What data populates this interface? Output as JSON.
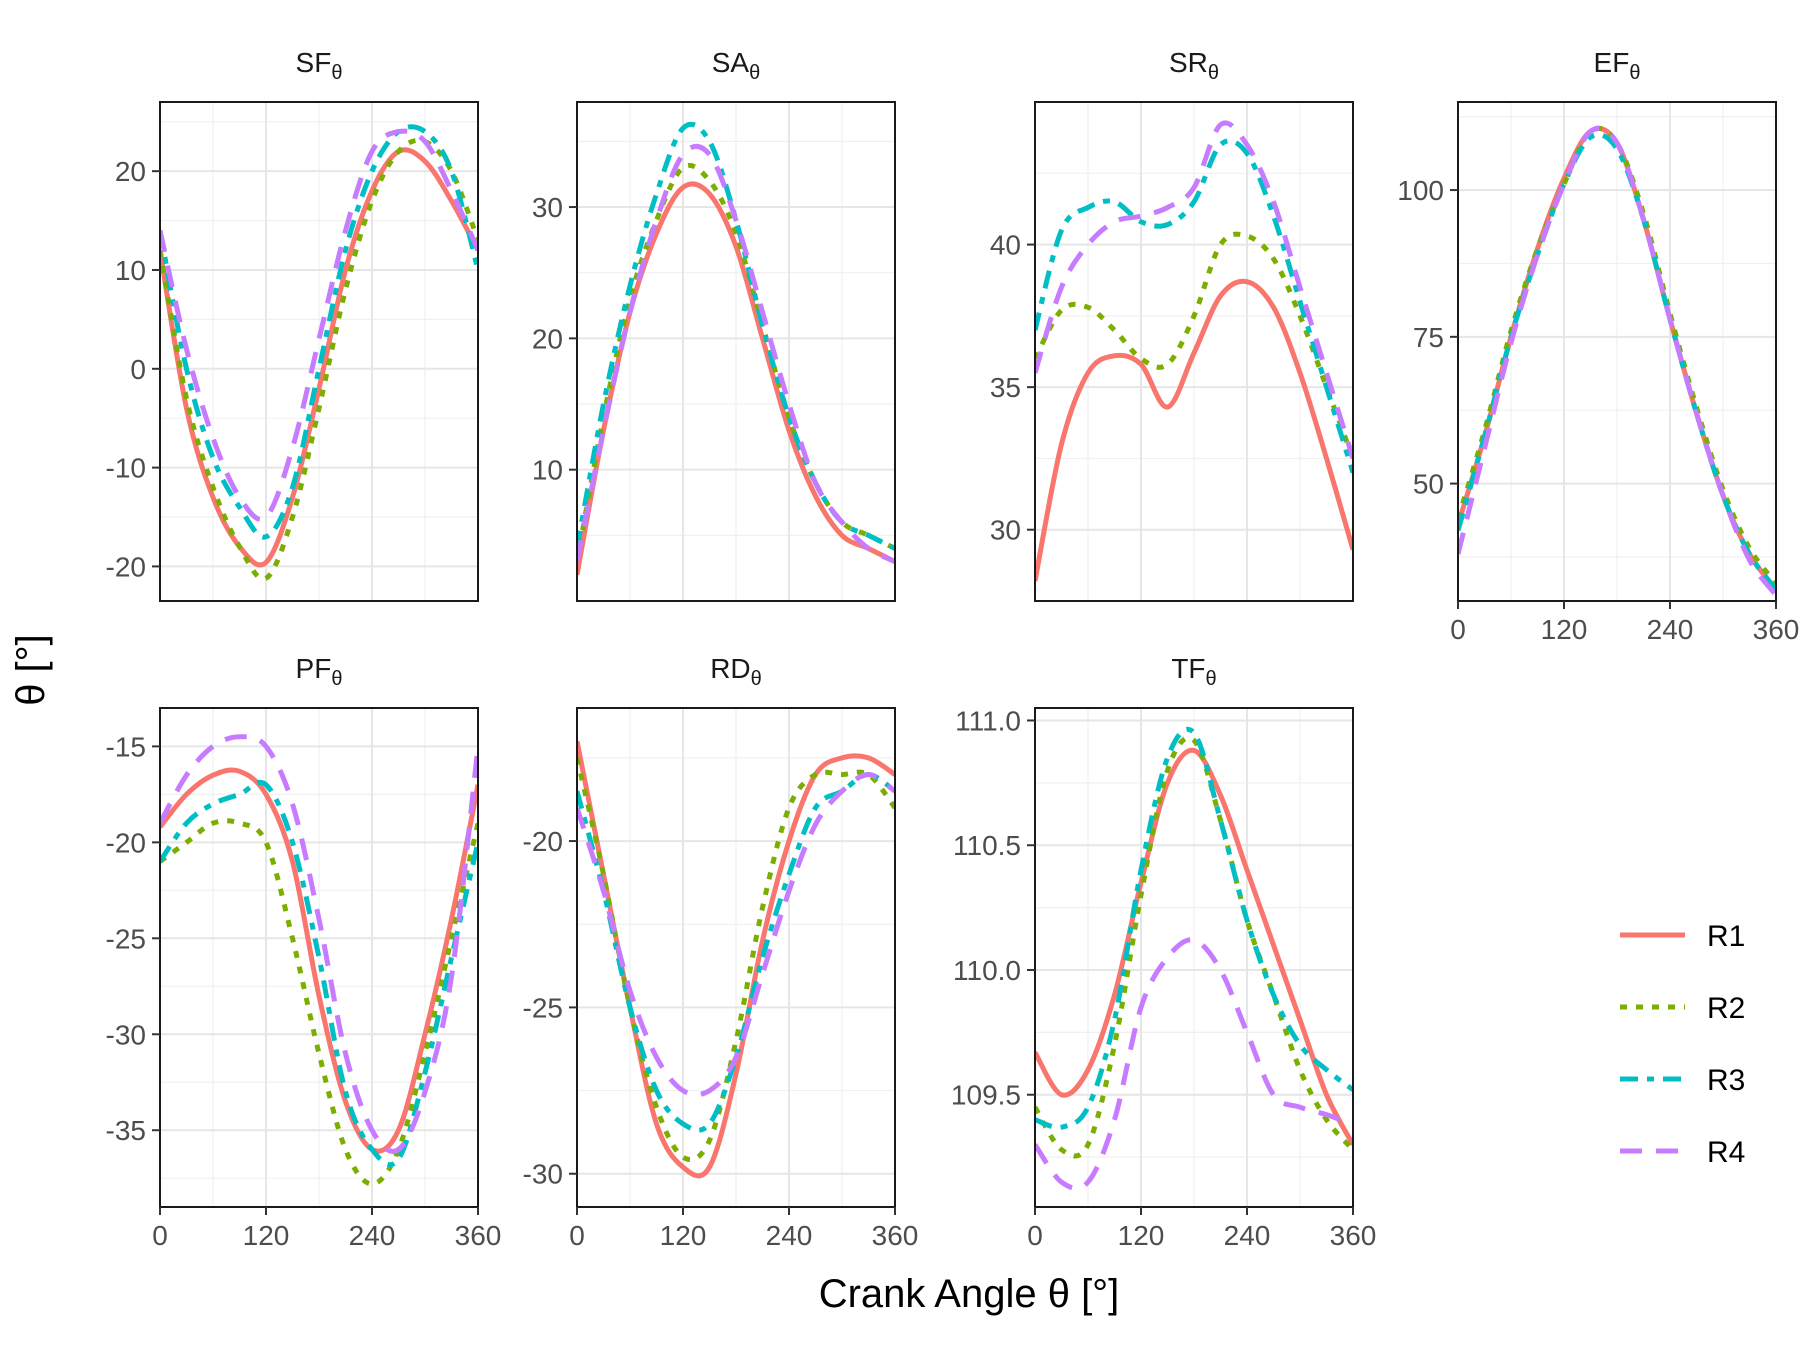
{
  "figure": {
    "ylabel": "θ [°]",
    "xlabel": "Crank Angle θ [°]"
  },
  "legend": {
    "entries": [
      {
        "name": "R1",
        "color": "#F8766D",
        "dash": "solid"
      },
      {
        "name": "R2",
        "color": "#7CAE00",
        "dash": "dotted"
      },
      {
        "name": "R3",
        "color": "#00BFC4",
        "dash": "dotdash"
      },
      {
        "name": "R4",
        "color": "#C77CFF",
        "dash": "dashed"
      }
    ]
  },
  "chart_data": [
    {
      "type": "line",
      "title": "SF",
      "title_sub": "θ",
      "x": [
        0,
        30,
        60,
        90,
        120,
        150,
        180,
        210,
        240,
        270,
        300,
        330,
        360
      ],
      "xlim": [
        0,
        360
      ],
      "ylim": [
        -23.5,
        27
      ],
      "xticks": [
        0,
        120,
        240,
        360
      ],
      "yticks": [
        -20,
        -10,
        0,
        10,
        20
      ],
      "series": [
        {
          "name": "R1",
          "values": [
            12,
            -4,
            -13,
            -18,
            -19.6,
            -13,
            -2,
            10,
            18,
            22,
            21,
            17,
            12
          ]
        },
        {
          "name": "R2",
          "values": [
            12,
            -3,
            -12,
            -18,
            -21.2,
            -15,
            -4,
            8,
            17,
            22,
            23,
            20,
            13
          ]
        },
        {
          "name": "R3",
          "values": [
            14,
            0,
            -9,
            -14,
            -17,
            -12,
            0,
            12,
            20,
            24,
            24,
            20,
            10
          ]
        },
        {
          "name": "R4",
          "values": [
            14,
            2,
            -7,
            -13,
            -15,
            -8,
            3,
            14,
            22,
            24,
            23,
            18,
            12
          ]
        }
      ]
    },
    {
      "type": "line",
      "title": "SA",
      "title_sub": "θ",
      "x": [
        0,
        30,
        60,
        90,
        120,
        150,
        180,
        210,
        240,
        270,
        300,
        330,
        360
      ],
      "xlim": [
        0,
        360
      ],
      "ylim": [
        0,
        38
      ],
      "xticks": [
        0,
        120,
        240,
        360
      ],
      "yticks": [
        10,
        20,
        30
      ],
      "series": [
        {
          "name": "R1",
          "values": [
            2,
            13,
            22,
            28,
            31.5,
            31,
            27,
            20,
            13,
            8,
            5,
            4,
            3
          ]
        },
        {
          "name": "R2",
          "values": [
            3,
            14,
            23,
            29,
            33,
            32,
            28,
            21,
            14,
            9,
            6,
            5,
            4
          ]
        },
        {
          "name": "R3",
          "values": [
            4,
            15,
            24,
            31,
            36,
            35,
            29,
            21,
            14,
            9,
            6,
            5,
            4
          ]
        },
        {
          "name": "R4",
          "values": [
            3,
            13,
            22,
            29,
            34,
            34,
            29,
            22,
            15,
            9,
            6,
            4,
            3
          ]
        }
      ]
    },
    {
      "type": "line",
      "title": "SR",
      "title_sub": "θ",
      "x": [
        0,
        30,
        60,
        90,
        120,
        150,
        180,
        210,
        240,
        270,
        300,
        330,
        360
      ],
      "xlim": [
        0,
        360
      ],
      "ylim": [
        27.5,
        45
      ],
      "xticks": [
        0,
        120,
        240,
        360
      ],
      "yticks": [
        30,
        35,
        40
      ],
      "series": [
        {
          "name": "R1",
          "values": [
            28.2,
            33,
            35.5,
            36.1,
            35.8,
            34.3,
            36.2,
            38.2,
            38.7,
            37.8,
            35.5,
            32.5,
            29.3
          ]
        },
        {
          "name": "R2",
          "values": [
            36,
            37.7,
            37.8,
            37,
            36,
            35.8,
            37.5,
            40,
            40.3,
            39.5,
            37.5,
            35,
            32.5
          ]
        },
        {
          "name": "R3",
          "values": [
            37,
            40.5,
            41.3,
            41.5,
            40.8,
            40.7,
            41.5,
            43.5,
            43.2,
            41,
            38,
            35,
            32
          ]
        },
        {
          "name": "R4",
          "values": [
            35.5,
            38.5,
            40,
            40.8,
            41,
            41.3,
            42,
            44.2,
            43.5,
            41.5,
            38.5,
            35.5,
            32.5
          ]
        }
      ]
    },
    {
      "type": "line",
      "title": "EF",
      "title_sub": "θ",
      "x": [
        0,
        30,
        60,
        90,
        120,
        150,
        180,
        210,
        240,
        270,
        300,
        330,
        360
      ],
      "xlim": [
        0,
        360
      ],
      "ylim": [
        30,
        115
      ],
      "xticks": [
        0,
        120,
        240,
        360
      ],
      "yticks": [
        50,
        75,
        100
      ],
      "series": [
        {
          "name": "R1",
          "values": [
            43,
            58,
            75,
            90,
            102,
            110,
            108,
            95,
            78,
            62,
            48,
            38,
            32
          ]
        },
        {
          "name": "R2",
          "values": [
            44,
            59,
            76,
            90,
            101,
            110,
            108,
            96,
            79,
            63,
            49,
            39,
            33
          ]
        },
        {
          "name": "R3",
          "values": [
            42,
            58,
            75,
            89,
            101,
            109,
            107,
            95,
            78,
            62,
            48,
            38,
            32
          ]
        },
        {
          "name": "R4",
          "values": [
            38,
            56,
            74,
            89,
            101,
            110,
            108,
            95,
            78,
            62,
            48,
            37,
            31
          ]
        }
      ]
    },
    {
      "type": "line",
      "title": "PF",
      "title_sub": "θ",
      "x": [
        0,
        30,
        60,
        90,
        120,
        150,
        180,
        210,
        240,
        270,
        300,
        330,
        360
      ],
      "xlim": [
        0,
        360
      ],
      "ylim": [
        -39,
        -13
      ],
      "xticks": [
        0,
        120,
        240,
        360
      ],
      "yticks": [
        -35,
        -30,
        -25,
        -20,
        -15
      ],
      "series": [
        {
          "name": "R1",
          "values": [
            -19.2,
            -17.5,
            -16.5,
            -16.3,
            -17.5,
            -21,
            -28,
            -33.5,
            -36,
            -35,
            -30,
            -24,
            -17
          ]
        },
        {
          "name": "R2",
          "values": [
            -21,
            -20,
            -19,
            -19,
            -20,
            -25,
            -31,
            -36,
            -37.8,
            -36,
            -31,
            -25,
            -19
          ]
        },
        {
          "name": "R3",
          "values": [
            -21,
            -19,
            -18,
            -17.5,
            -17,
            -20,
            -26,
            -33,
            -36,
            -36.5,
            -32,
            -26,
            -20
          ]
        },
        {
          "name": "R4",
          "values": [
            -19,
            -16.5,
            -15,
            -14.5,
            -15,
            -18,
            -24,
            -31,
            -35,
            -36,
            -33,
            -27,
            -15
          ]
        }
      ]
    },
    {
      "type": "line",
      "title": "RD",
      "title_sub": "θ",
      "x": [
        0,
        30,
        60,
        90,
        120,
        150,
        180,
        210,
        240,
        270,
        300,
        330,
        360
      ],
      "xlim": [
        0,
        360
      ],
      "ylim": [
        -31,
        -16
      ],
      "xticks": [
        0,
        120,
        240,
        360
      ],
      "yticks": [
        -30,
        -25,
        -20
      ],
      "series": [
        {
          "name": "R1",
          "values": [
            -17,
            -21,
            -25,
            -28.5,
            -29.8,
            -29.8,
            -27,
            -23,
            -20,
            -18,
            -17.5,
            -17.5,
            -18
          ]
        },
        {
          "name": "R2",
          "values": [
            -17.5,
            -21,
            -25,
            -28,
            -29.5,
            -29,
            -26,
            -22,
            -19,
            -18,
            -18,
            -18,
            -19
          ]
        },
        {
          "name": "R3",
          "values": [
            -18.5,
            -21.5,
            -25,
            -27.5,
            -28.5,
            -28.5,
            -26.5,
            -23.5,
            -21,
            -19,
            -18.5,
            -18,
            -18.5
          ]
        },
        {
          "name": "R4",
          "values": [
            -19,
            -21.5,
            -24.5,
            -26.5,
            -27.5,
            -27.5,
            -26.5,
            -24,
            -21.5,
            -19.5,
            -18.5,
            -18,
            -18.5
          ]
        }
      ]
    },
    {
      "type": "line",
      "title": "TF",
      "title_sub": "θ",
      "x": [
        0,
        30,
        60,
        90,
        120,
        150,
        180,
        210,
        240,
        270,
        300,
        330,
        360
      ],
      "xlim": [
        0,
        360
      ],
      "ylim": [
        109.05,
        111.05
      ],
      "xticks": [
        0,
        120,
        240,
        360
      ],
      "yticks": [
        109.5,
        110.0,
        110.5,
        111.0
      ],
      "series": [
        {
          "name": "R1",
          "values": [
            109.67,
            109.5,
            109.6,
            109.9,
            110.35,
            110.75,
            110.88,
            110.7,
            110.4,
            110.1,
            109.8,
            109.5,
            109.3
          ]
        },
        {
          "name": "R2",
          "values": [
            109.45,
            109.28,
            109.3,
            109.7,
            110.3,
            110.8,
            110.92,
            110.6,
            110.2,
            109.9,
            109.6,
            109.4,
            109.28
          ]
        },
        {
          "name": "R3",
          "values": [
            109.4,
            109.37,
            109.45,
            109.8,
            110.4,
            110.85,
            110.95,
            110.6,
            110.2,
            109.9,
            109.7,
            109.6,
            109.52
          ]
        },
        {
          "name": "R4",
          "values": [
            109.3,
            109.15,
            109.15,
            109.4,
            109.85,
            110.05,
            110.12,
            110.0,
            109.75,
            109.5,
            109.45,
            109.42,
            109.38
          ]
        }
      ]
    }
  ]
}
